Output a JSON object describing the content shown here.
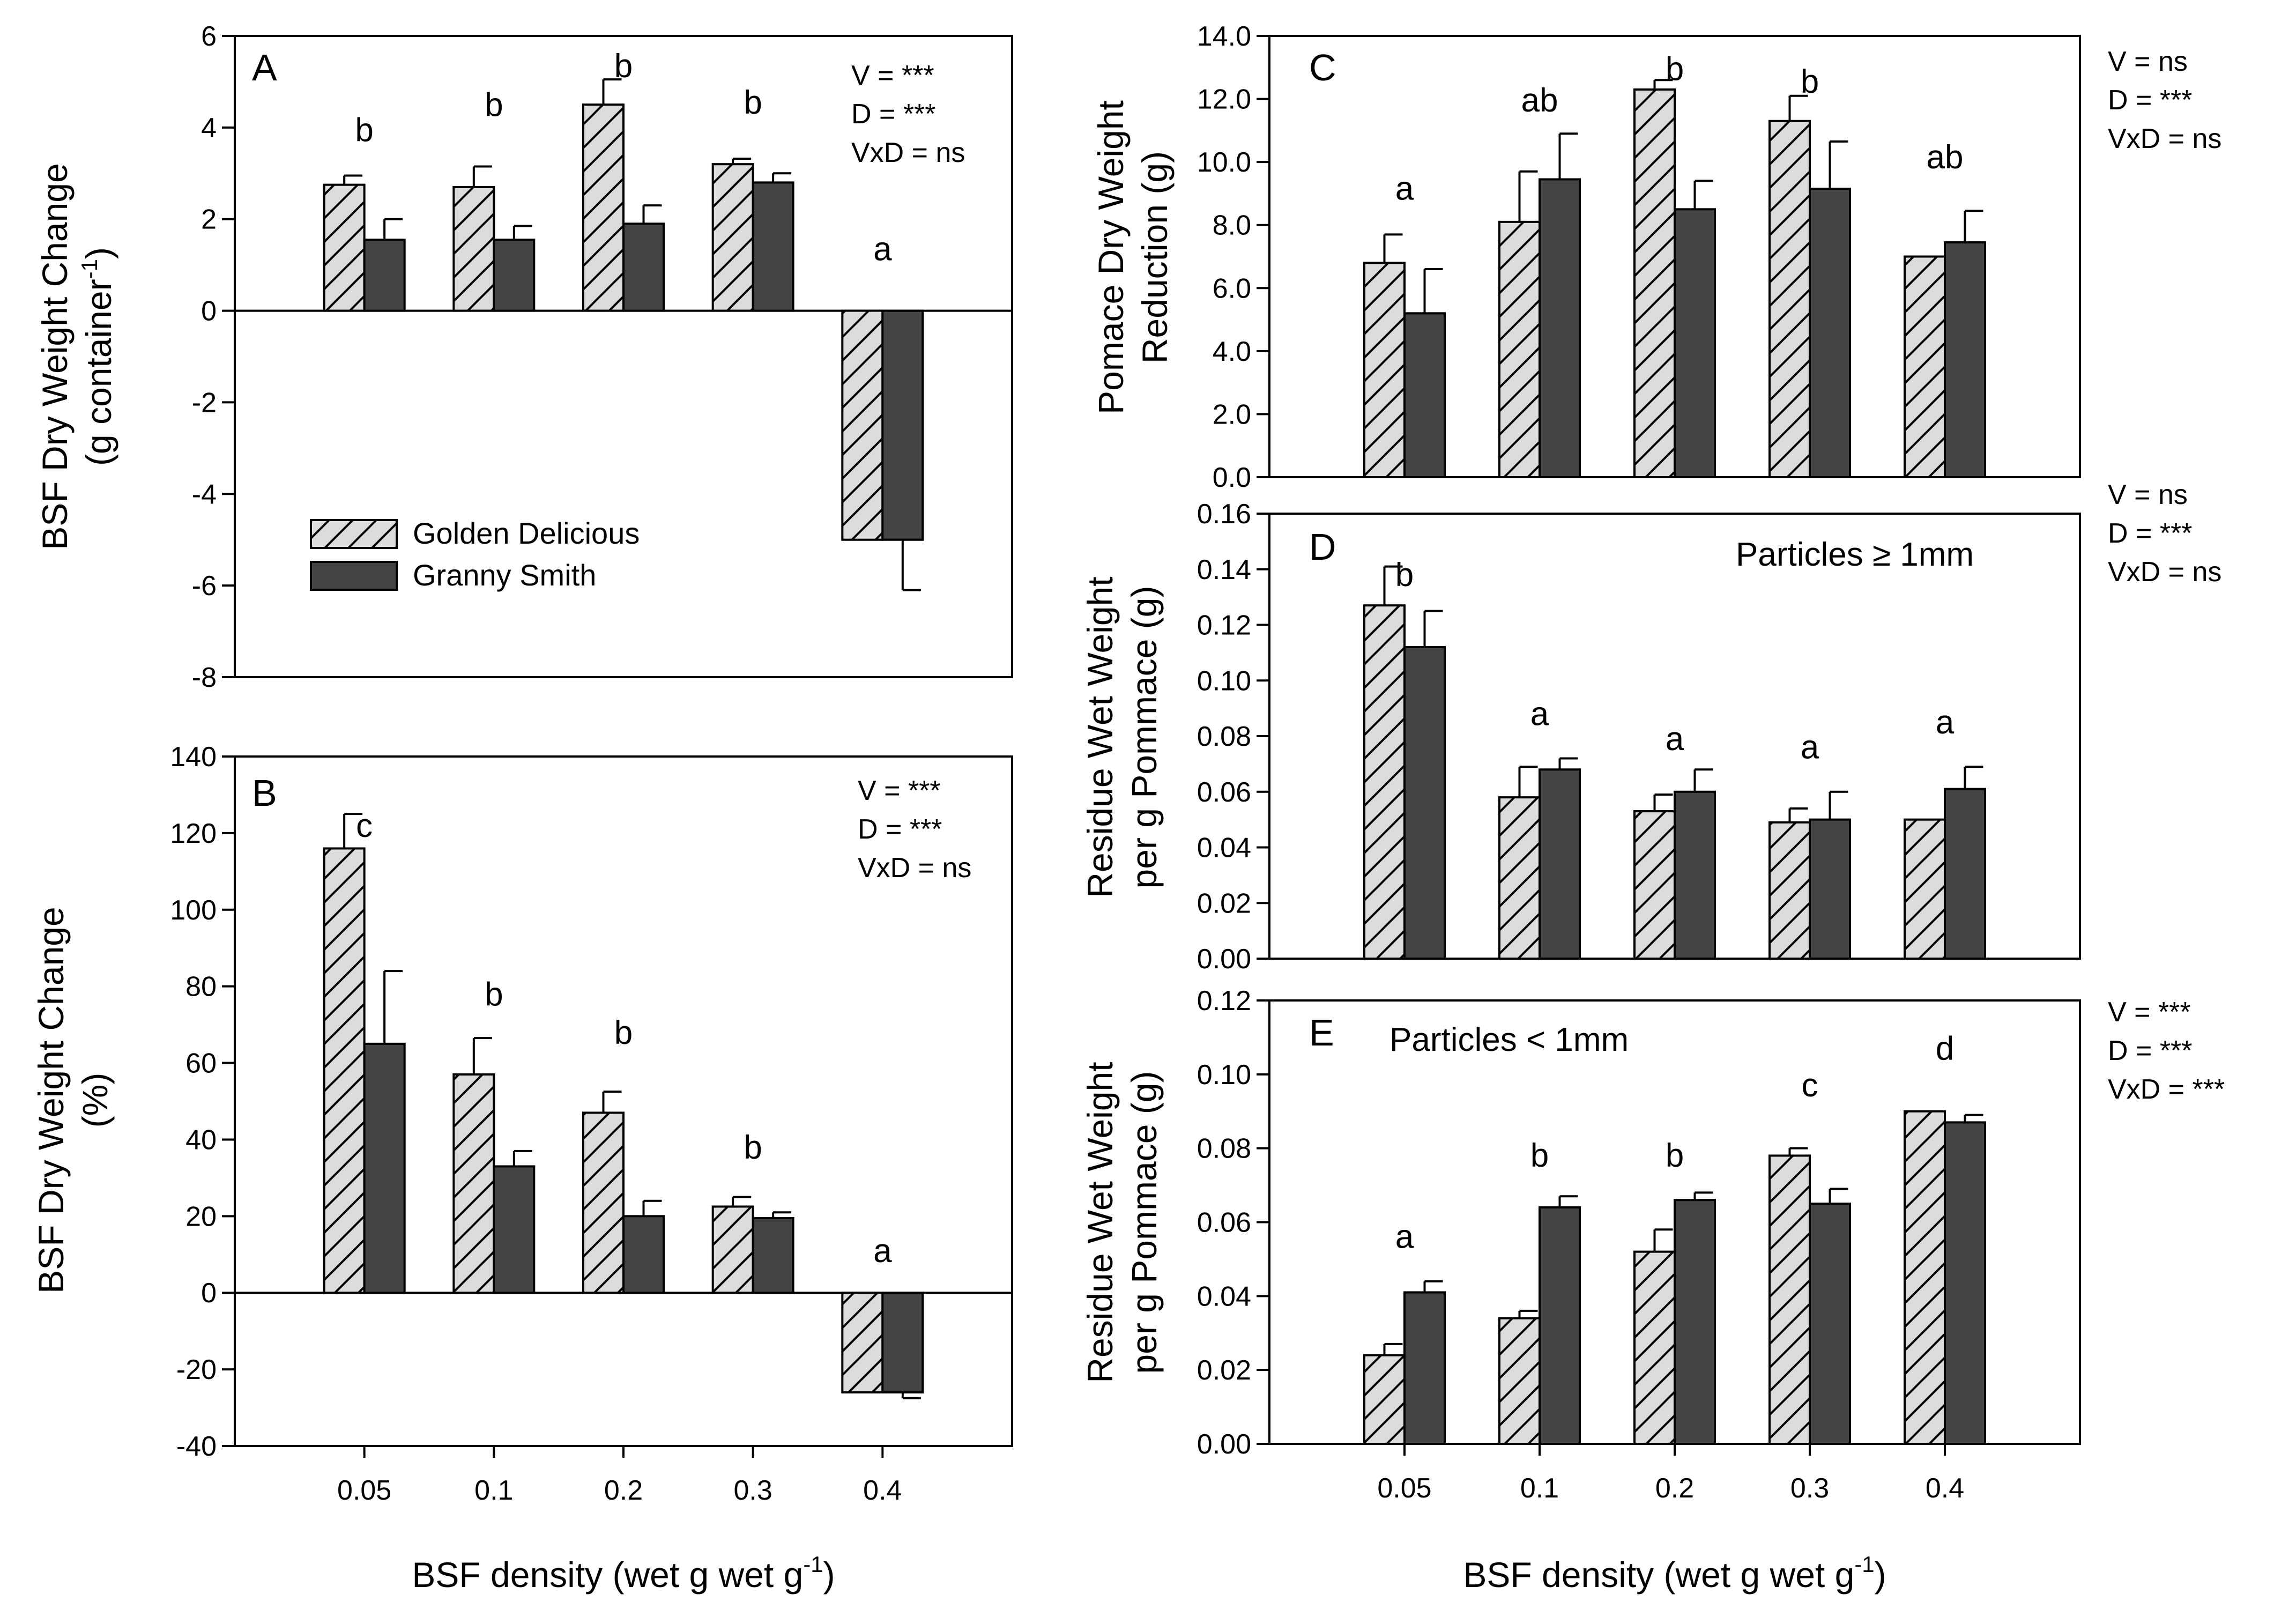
{
  "colors": {
    "golden": "#dcdcdc",
    "granny": "#444444",
    "axis": "#000000"
  },
  "legend": {
    "placement": "lower-left (panel A)",
    "labels": [
      "Golden Delicious",
      "Granny Smith"
    ]
  },
  "x_axis_title": {
    "text": "BSF density (wet g wet g",
    "sup": "-1",
    "close": ")"
  },
  "chart_data": [
    {
      "id": "A",
      "type": "bar",
      "panel_label": "A",
      "ylabel": [
        "BSF Dry Weight Change",
        "(g container",
        "-1",
        ")"
      ],
      "ylim": [
        -8,
        6
      ],
      "ticks": [
        6,
        4,
        2,
        0,
        -2,
        -4,
        -6,
        -8
      ],
      "tick_labels": [
        "6",
        "4",
        "2",
        "0",
        "-2",
        "-4",
        "-6",
        "-8"
      ],
      "categories": [
        "0.05",
        "0.1",
        "0.2",
        "0.3",
        "0.4"
      ],
      "show_x_ticks": false,
      "series": [
        {
          "name": "Golden Delicious",
          "values": [
            2.75,
            2.7,
            4.5,
            3.2,
            -5.0
          ],
          "errors": [
            0.2,
            0.45,
            0.55,
            0.12,
            0.0
          ]
        },
        {
          "name": "Granny Smith",
          "values": [
            1.55,
            1.55,
            1.9,
            2.8,
            -5.0
          ],
          "errors": [
            0.45,
            0.3,
            0.4,
            0.2,
            1.1
          ]
        }
      ],
      "letters": [
        "b",
        "b",
        "b",
        "b",
        "a"
      ],
      "letter_values": [
        3.7,
        4.25,
        5.1,
        4.3,
        1.1
      ],
      "stats": [
        "V = ***",
        "D = ***",
        "VxD = ns"
      ]
    },
    {
      "id": "B",
      "type": "bar",
      "panel_label": "B",
      "ylabel": [
        "BSF Dry Weight Change",
        "(%)"
      ],
      "ylim": [
        -40,
        140
      ],
      "ticks": [
        140,
        120,
        100,
        80,
        60,
        40,
        20,
        0,
        -20,
        -40
      ],
      "tick_labels": [
        "140",
        "120",
        "100",
        "80",
        "60",
        "40",
        "20",
        "0",
        "-20",
        "-40"
      ],
      "categories": [
        "0.05",
        "0.1",
        "0.2",
        "0.3",
        "0.4"
      ],
      "show_x_ticks": true,
      "series": [
        {
          "name": "Golden Delicious",
          "values": [
            116,
            57,
            47,
            22.5,
            -26
          ],
          "errors": [
            9,
            9.5,
            5.5,
            2.5,
            0
          ]
        },
        {
          "name": "Granny Smith",
          "values": [
            65,
            33,
            20,
            19.5,
            -26
          ],
          "errors": [
            19,
            4,
            4,
            1.5,
            1.5
          ]
        }
      ],
      "letters": [
        "c",
        "b",
        "b",
        "b",
        "a"
      ],
      "letter_values": [
        119,
        75,
        65,
        35,
        8
      ],
      "stats": [
        "V = ***",
        "D = ***",
        "VxD = ns"
      ]
    },
    {
      "id": "C",
      "type": "bar",
      "panel_label": "C",
      "ylabel": [
        "Pomace Dry Weight",
        "Reduction (g)"
      ],
      "ylim": [
        0,
        14
      ],
      "ticks": [
        14,
        12,
        10,
        8,
        6,
        4,
        2,
        0
      ],
      "tick_labels": [
        "14.0",
        "12.0",
        "10.0",
        "8.0",
        "6.0",
        "4.0",
        "2.0",
        "0.0"
      ],
      "categories": [
        "0.05",
        "0.1",
        "0.2",
        "0.3",
        "0.4"
      ],
      "show_x_ticks": false,
      "series": [
        {
          "name": "Golden Delicious",
          "values": [
            6.8,
            8.1,
            12.3,
            11.3,
            7.0
          ],
          "errors": [
            0.9,
            1.6,
            0.3,
            0.8,
            0.0
          ]
        },
        {
          "name": "Granny Smith",
          "values": [
            5.2,
            9.45,
            8.5,
            9.15,
            7.45
          ],
          "errors": [
            1.4,
            1.45,
            0.9,
            1.5,
            1.0
          ]
        }
      ],
      "letters": [
        "a",
        "ab",
        "b",
        "b",
        "ab"
      ],
      "letter_values": [
        8.8,
        11.6,
        12.6,
        12.2,
        9.8
      ],
      "stats": [
        "V = ns",
        "D = ***",
        "VxD = ns"
      ]
    },
    {
      "id": "D",
      "type": "bar",
      "panel_label": "D",
      "ylabel": [
        "Residue Wet Weight",
        "per g Pommace (g)"
      ],
      "ylim": [
        0,
        0.16
      ],
      "ticks": [
        0.16,
        0.14,
        0.12,
        0.1,
        0.08,
        0.06,
        0.04,
        0.02,
        0
      ],
      "tick_labels": [
        "0.16",
        "0.14",
        "0.12",
        "0.10",
        "0.08",
        "0.06",
        "0.04",
        "0.02",
        "0.00"
      ],
      "categories": [
        "0.05",
        "0.1",
        "0.2",
        "0.3",
        "0.4"
      ],
      "show_x_ticks": false,
      "series": [
        {
          "name": "Golden Delicious",
          "values": [
            0.127,
            0.058,
            0.053,
            0.049,
            0.05
          ],
          "errors": [
            0.014,
            0.011,
            0.006,
            0.005,
            0.0
          ]
        },
        {
          "name": "Granny Smith",
          "values": [
            0.112,
            0.068,
            0.06,
            0.05,
            0.061
          ],
          "errors": [
            0.013,
            0.004,
            0.008,
            0.01,
            0.008
          ]
        }
      ],
      "letters": [
        "b",
        "a",
        "a",
        "a",
        "a"
      ],
      "letter_values": [
        0.134,
        0.084,
        0.075,
        0.072,
        0.081
      ],
      "note": "Particles ≥ 1mm",
      "stats": [
        "V = ns",
        "D = ***",
        "VxD = ns"
      ]
    },
    {
      "id": "E",
      "type": "bar",
      "panel_label": "E",
      "ylabel": [
        "Residue Wet Weight",
        "per g Pommace (g)"
      ],
      "ylim": [
        0,
        0.12
      ],
      "ticks": [
        0.12,
        0.1,
        0.08,
        0.06,
        0.04,
        0.02,
        0
      ],
      "tick_labels": [
        "0.12",
        "0.10",
        "0.08",
        "0.06",
        "0.04",
        "0.02",
        "0.00"
      ],
      "categories": [
        "0.05",
        "0.1",
        "0.2",
        "0.3",
        "0.4"
      ],
      "show_x_ticks": true,
      "series": [
        {
          "name": "Golden Delicious",
          "values": [
            0.024,
            0.034,
            0.052,
            0.078,
            0.09
          ],
          "errors": [
            0.003,
            0.002,
            0.006,
            0.002,
            0.0
          ]
        },
        {
          "name": "Granny Smith",
          "values": [
            0.041,
            0.064,
            0.066,
            0.065,
            0.087
          ],
          "errors": [
            0.003,
            0.003,
            0.002,
            0.004,
            0.002
          ]
        }
      ],
      "letters": [
        "a",
        "b",
        "b",
        "c",
        "d"
      ],
      "letter_values": [
        0.053,
        0.075,
        0.075,
        0.094,
        0.104
      ],
      "note": "Particles < 1mm",
      "stats": [
        "V = ***",
        "D = ***",
        "VxD = ***"
      ]
    }
  ]
}
